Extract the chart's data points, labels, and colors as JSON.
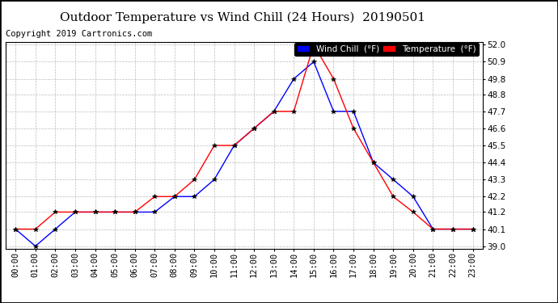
{
  "title": "Outdoor Temperature vs Wind Chill (24 Hours)  20190501",
  "copyright": "Copyright 2019 Cartronics.com",
  "x_labels": [
    "00:00",
    "01:00",
    "02:00",
    "03:00",
    "04:00",
    "05:00",
    "06:00",
    "07:00",
    "08:00",
    "09:00",
    "10:00",
    "11:00",
    "12:00",
    "13:00",
    "14:00",
    "15:00",
    "16:00",
    "17:00",
    "18:00",
    "19:00",
    "20:00",
    "21:00",
    "22:00",
    "23:00"
  ],
  "temperature": [
    40.1,
    40.1,
    41.2,
    41.2,
    41.2,
    41.2,
    41.2,
    42.2,
    42.2,
    43.3,
    45.5,
    45.5,
    46.6,
    47.7,
    47.7,
    52.0,
    49.8,
    46.6,
    44.4,
    42.2,
    41.2,
    40.1,
    40.1,
    40.1
  ],
  "wind_chill": [
    40.1,
    39.0,
    40.1,
    41.2,
    41.2,
    41.2,
    41.2,
    41.2,
    42.2,
    42.2,
    43.3,
    45.5,
    46.6,
    47.7,
    49.8,
    50.9,
    47.7,
    47.7,
    44.4,
    43.3,
    42.2,
    40.1,
    40.1,
    40.1
  ],
  "temp_color": "#ff0000",
  "wind_color": "#0000ff",
  "ylim_min": 39.0,
  "ylim_max": 52.0,
  "yticks": [
    39.0,
    40.1,
    41.2,
    42.2,
    43.3,
    44.4,
    45.5,
    46.6,
    47.7,
    48.8,
    49.8,
    50.9,
    52.0
  ],
  "bg_color": "#ffffff",
  "grid_color": "#bbbbbb",
  "legend_wind_bg": "#0000ff",
  "legend_temp_bg": "#ff0000",
  "title_fontsize": 11,
  "copyright_fontsize": 7.5,
  "tick_fontsize": 7.5
}
